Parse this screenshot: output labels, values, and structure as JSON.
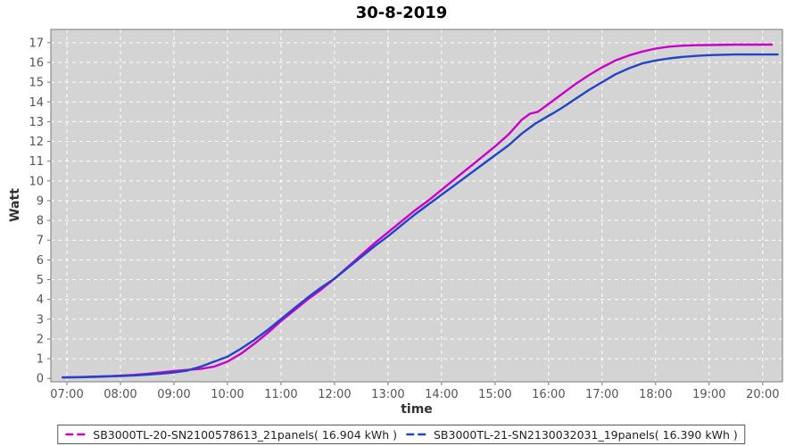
{
  "title": "30-8-2019",
  "chart_data": {
    "type": "line",
    "title": "30-8-2019",
    "xlabel": "time",
    "ylabel": "Watt",
    "xlim": [
      6.7,
      20.37
    ],
    "ylim": [
      -0.17,
      17.67
    ],
    "x_ticks": [
      "07:00",
      "08:00",
      "09:00",
      "10:00",
      "11:00",
      "12:00",
      "13:00",
      "14:00",
      "15:00",
      "16:00",
      "17:00",
      "18:00",
      "19:00",
      "20:00"
    ],
    "x_tick_hours": [
      7,
      8,
      9,
      10,
      11,
      12,
      13,
      14,
      15,
      16,
      17,
      18,
      19,
      20
    ],
    "y_ticks": [
      0,
      1,
      2,
      3,
      4,
      5,
      6,
      7,
      8,
      9,
      10,
      11,
      12,
      13,
      14,
      15,
      16,
      17
    ],
    "grid": "white dashed on gray plot background",
    "legend_position": "bottom",
    "plot_bg": "#d4d4d4",
    "plot_border": "#7a7a7a",
    "grid_color": "#ffffff",
    "tick_color": "#777777",
    "series": [
      {
        "name": "SB3000TL-20-SN2100578613_21panels( 16.904 kWh )",
        "color": "#cc00cc",
        "total_kwh": 16.904,
        "points": [
          [
            6.92,
            0.05
          ],
          [
            7.0,
            0.05
          ],
          [
            7.25,
            0.07
          ],
          [
            7.5,
            0.09
          ],
          [
            7.75,
            0.11
          ],
          [
            8.0,
            0.14
          ],
          [
            8.25,
            0.18
          ],
          [
            8.5,
            0.23
          ],
          [
            8.75,
            0.3
          ],
          [
            9.0,
            0.37
          ],
          [
            9.25,
            0.43
          ],
          [
            9.5,
            0.48
          ],
          [
            9.75,
            0.6
          ],
          [
            10.0,
            0.85
          ],
          [
            10.25,
            1.25
          ],
          [
            10.5,
            1.75
          ],
          [
            10.75,
            2.3
          ],
          [
            11.0,
            2.9
          ],
          [
            11.25,
            3.45
          ],
          [
            11.5,
            4.0
          ],
          [
            11.75,
            4.5
          ],
          [
            12.0,
            5.05
          ],
          [
            12.25,
            5.65
          ],
          [
            12.5,
            6.25
          ],
          [
            12.75,
            6.85
          ],
          [
            13.0,
            7.4
          ],
          [
            13.25,
            7.95
          ],
          [
            13.5,
            8.5
          ],
          [
            13.75,
            9.0
          ],
          [
            14.0,
            9.55
          ],
          [
            14.25,
            10.1
          ],
          [
            14.5,
            10.65
          ],
          [
            14.75,
            11.2
          ],
          [
            15.0,
            11.75
          ],
          [
            15.25,
            12.35
          ],
          [
            15.5,
            13.1
          ],
          [
            15.65,
            13.4
          ],
          [
            15.8,
            13.5
          ],
          [
            16.0,
            13.9
          ],
          [
            16.25,
            14.4
          ],
          [
            16.5,
            14.9
          ],
          [
            16.75,
            15.35
          ],
          [
            17.0,
            15.75
          ],
          [
            17.25,
            16.1
          ],
          [
            17.5,
            16.35
          ],
          [
            17.75,
            16.55
          ],
          [
            18.0,
            16.7
          ],
          [
            18.25,
            16.8
          ],
          [
            18.5,
            16.85
          ],
          [
            18.75,
            16.87
          ],
          [
            19.0,
            16.88
          ],
          [
            19.5,
            16.9
          ],
          [
            20.0,
            16.9
          ],
          [
            20.17,
            16.9
          ]
        ]
      },
      {
        "name": "SB3000TL-21-SN2130032031_19panels( 16.390 kWh )",
        "color": "#2343c8",
        "total_kwh": 16.39,
        "points": [
          [
            6.92,
            0.05
          ],
          [
            7.0,
            0.05
          ],
          [
            7.25,
            0.06
          ],
          [
            7.5,
            0.08
          ],
          [
            7.75,
            0.1
          ],
          [
            8.0,
            0.12
          ],
          [
            8.25,
            0.15
          ],
          [
            8.5,
            0.19
          ],
          [
            8.75,
            0.24
          ],
          [
            9.0,
            0.3
          ],
          [
            9.25,
            0.4
          ],
          [
            9.5,
            0.6
          ],
          [
            9.75,
            0.85
          ],
          [
            10.0,
            1.1
          ],
          [
            10.25,
            1.5
          ],
          [
            10.5,
            1.95
          ],
          [
            10.75,
            2.45
          ],
          [
            11.0,
            3.0
          ],
          [
            11.25,
            3.55
          ],
          [
            11.5,
            4.1
          ],
          [
            11.75,
            4.6
          ],
          [
            12.0,
            5.05
          ],
          [
            12.25,
            5.6
          ],
          [
            12.5,
            6.15
          ],
          [
            12.75,
            6.7
          ],
          [
            13.0,
            7.2
          ],
          [
            13.25,
            7.75
          ],
          [
            13.5,
            8.3
          ],
          [
            13.75,
            8.8
          ],
          [
            14.0,
            9.3
          ],
          [
            14.25,
            9.8
          ],
          [
            14.5,
            10.3
          ],
          [
            14.75,
            10.8
          ],
          [
            15.0,
            11.3
          ],
          [
            15.25,
            11.8
          ],
          [
            15.5,
            12.4
          ],
          [
            15.75,
            12.9
          ],
          [
            16.0,
            13.3
          ],
          [
            16.1,
            13.45
          ],
          [
            16.25,
            13.7
          ],
          [
            16.5,
            14.15
          ],
          [
            16.75,
            14.6
          ],
          [
            17.0,
            15.0
          ],
          [
            17.25,
            15.4
          ],
          [
            17.5,
            15.7
          ],
          [
            17.75,
            15.95
          ],
          [
            18.0,
            16.1
          ],
          [
            18.25,
            16.2
          ],
          [
            18.5,
            16.28
          ],
          [
            18.75,
            16.33
          ],
          [
            19.0,
            16.37
          ],
          [
            19.5,
            16.4
          ],
          [
            20.0,
            16.4
          ],
          [
            20.28,
            16.4
          ]
        ]
      }
    ]
  }
}
